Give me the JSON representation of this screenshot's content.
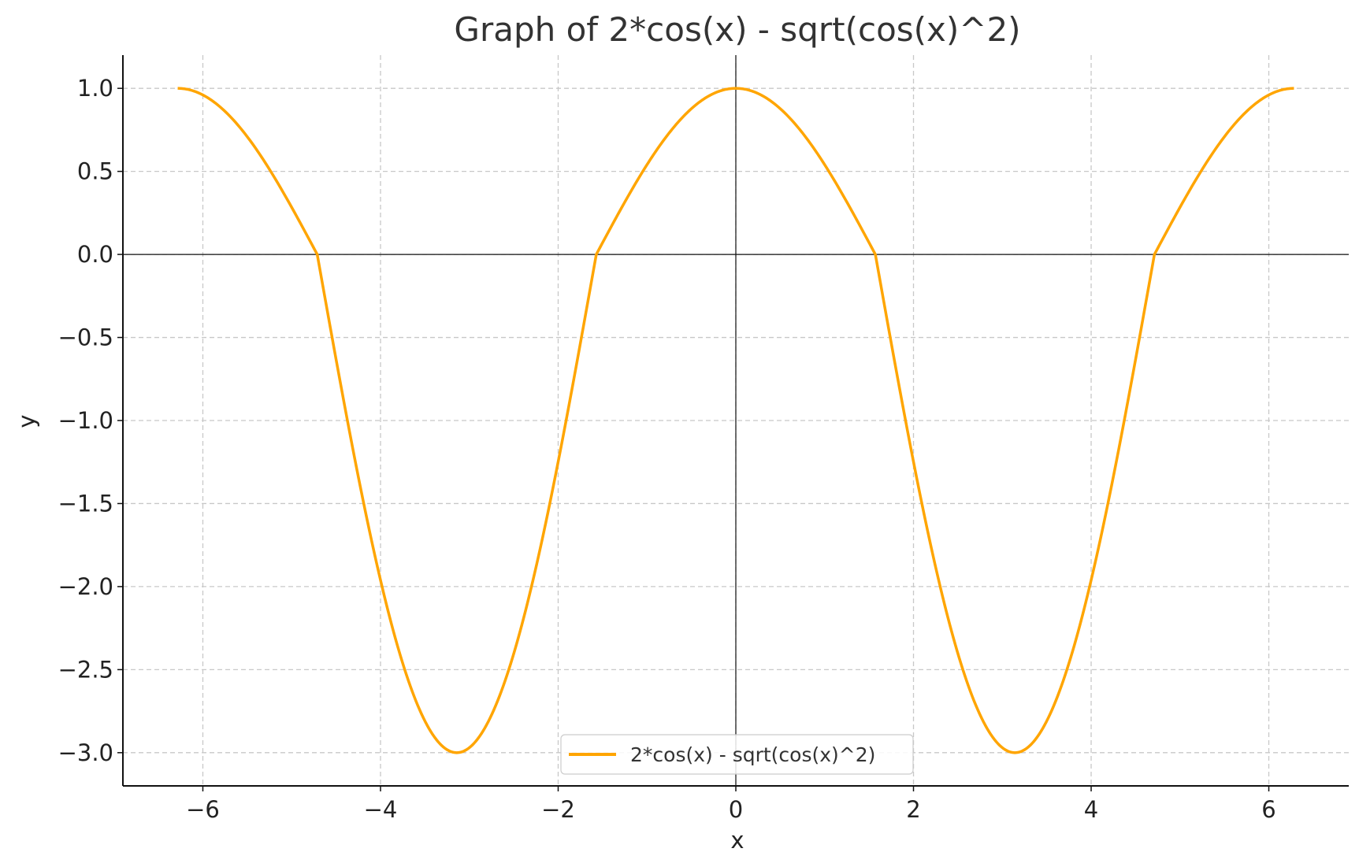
{
  "chart_data": {
    "type": "line",
    "title": "Graph of 2*cos(x) - sqrt(cos(x)^2)",
    "xlabel": "x",
    "ylabel": "y",
    "xlim": [
      -6.9,
      6.9
    ],
    "ylim": [
      -3.2,
      1.2
    ],
    "x_ticks": [
      -6,
      -4,
      -2,
      0,
      2,
      4,
      6
    ],
    "x_tick_labels": [
      "−6",
      "−4",
      "−2",
      "0",
      "2",
      "4",
      "6"
    ],
    "y_ticks": [
      1.0,
      0.5,
      0.0,
      -0.5,
      -1.0,
      -1.5,
      -2.0,
      -2.5,
      -3.0
    ],
    "y_tick_labels": [
      "1.0",
      "0.5",
      "0.0",
      "−0.5",
      "−1.0",
      "−1.5",
      "−2.0",
      "−2.5",
      "−3.0"
    ],
    "grid": true,
    "legend_position": "bottom-center",
    "series": [
      {
        "name": "2*cos(x) - sqrt(cos(x)^2)",
        "color": "#ffa500",
        "x_range": [
          -6.2832,
          6.2832
        ],
        "points": [
          [
            -6.2832,
            1.0
          ],
          [
            -5.7596,
            0.866
          ],
          [
            -5.236,
            0.5
          ],
          [
            -4.7124,
            0.0
          ],
          [
            -4.1888,
            -1.5
          ],
          [
            -3.6652,
            -2.598
          ],
          [
            -3.1416,
            -3.0
          ],
          [
            -2.618,
            -2.598
          ],
          [
            -2.0944,
            -1.5
          ],
          [
            -1.5708,
            0.0
          ],
          [
            -1.0472,
            0.5
          ],
          [
            -0.5236,
            0.866
          ],
          [
            0.0,
            1.0
          ],
          [
            0.5236,
            0.866
          ],
          [
            1.0472,
            0.5
          ],
          [
            1.5708,
            0.0
          ],
          [
            2.0944,
            -1.5
          ],
          [
            2.618,
            -2.598
          ],
          [
            3.1416,
            -3.0
          ],
          [
            3.6652,
            -2.598
          ],
          [
            4.1888,
            -1.5
          ],
          [
            4.7124,
            0.0
          ],
          [
            5.236,
            0.5
          ],
          [
            5.7596,
            0.866
          ],
          [
            6.2832,
            1.0
          ]
        ]
      }
    ]
  }
}
